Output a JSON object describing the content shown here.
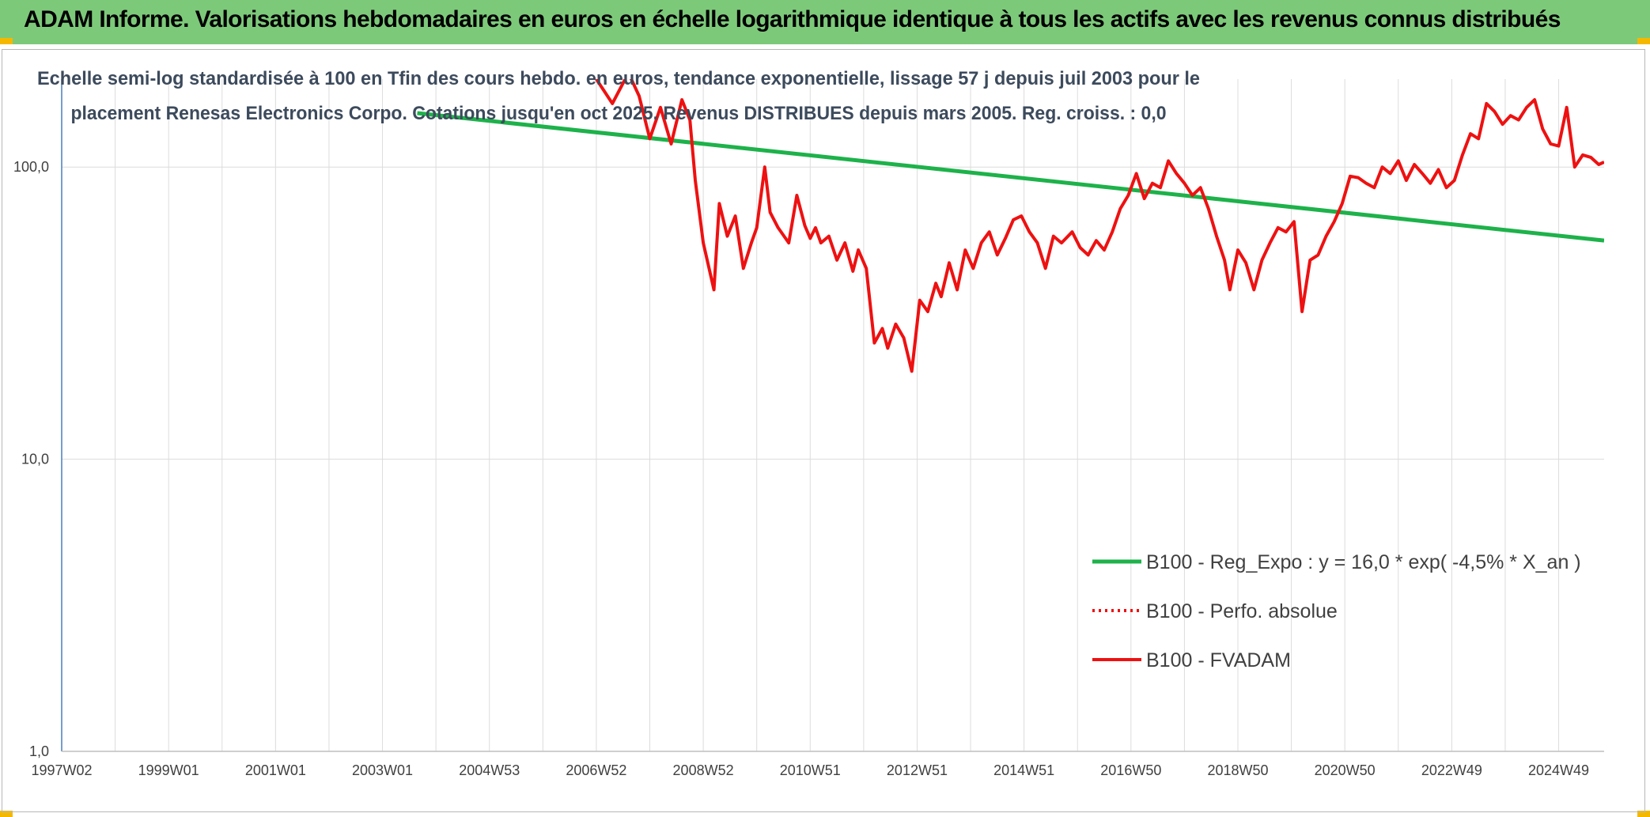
{
  "header": {
    "title": "ADAM Informe. Valorisations hebdomadaires en euros en échelle logarithmique identique à tous les actifs avec les revenus connus distribués"
  },
  "colors": {
    "header_bg": "#7dc97a",
    "trend": "#1db24a",
    "fvadam": "#ee1111",
    "perfo": "#ee1111",
    "grid": "#dcdcdc",
    "axis": "#4a7ebb"
  },
  "chart_data": {
    "type": "line",
    "subtitle_lines": [
      "Echelle semi-log standardisée à 100 en Tfin des cours hebdo. en euros, tendance exponentielle, lissage 57 j depuis juil 2003 pour le",
      "placement Renesas Electronics Corpo. Cotations jusqu'en oct 2025. Revenus DISTRIBUES depuis mars 2005. Reg. croiss. : 0,0"
    ],
    "y_scale": "log",
    "ylim": [
      1,
      200
    ],
    "y_ticks": [
      "100,0",
      "10,0",
      "1,0"
    ],
    "y_tick_values": [
      100,
      10,
      1
    ],
    "x_range": [
      1997.0,
      2025.85
    ],
    "x_ticks": [
      "1997W02",
      "1999W01",
      "2001W01",
      "2003W01",
      "2004W53",
      "2006W52",
      "2008W52",
      "2010W51",
      "2012W51",
      "2014W51",
      "2016W50",
      "2018W50",
      "2020W50",
      "2022W49",
      "2024W49"
    ],
    "x_tick_values": [
      1997.0,
      1999.0,
      2001.0,
      2003.0,
      2005.0,
      2007.0,
      2009.0,
      2011.0,
      2013.0,
      2015.0,
      2017.0,
      2019.0,
      2021.0,
      2023.0,
      2025.0
    ],
    "grid": true,
    "legend_position": "bottom-right",
    "series": [
      {
        "name": "B100 - Reg_Expo : y = 16,0 * exp( -4,5% *  X_an )",
        "style": "solid-green",
        "x": [
          2003.65,
          2025.85
        ],
        "y": [
          153,
          56
        ]
      },
      {
        "name": "B100 - Perfo. absolue",
        "style": "dotted-red",
        "x": [],
        "y": []
      },
      {
        "name": "B100 - FVADAM",
        "style": "solid-red",
        "x": [
          2007.0,
          2007.3,
          2007.6,
          2007.8,
          2008.0,
          2008.2,
          2008.4,
          2008.6,
          2008.75,
          2008.85,
          2009.0,
          2009.2,
          2009.3,
          2009.45,
          2009.6,
          2009.75,
          2009.9,
          2010.0,
          2010.15,
          2010.25,
          2010.4,
          2010.6,
          2010.75,
          2010.9,
          2011.0,
          2011.1,
          2011.2,
          2011.35,
          2011.5,
          2011.65,
          2011.8,
          2011.9,
          2012.05,
          2012.2,
          2012.35,
          2012.45,
          2012.6,
          2012.75,
          2012.9,
          2013.05,
          2013.2,
          2013.35,
          2013.45,
          2013.6,
          2013.75,
          2013.9,
          2014.05,
          2014.2,
          2014.35,
          2014.5,
          2014.65,
          2014.8,
          2014.95,
          2015.1,
          2015.25,
          2015.4,
          2015.55,
          2015.7,
          2015.9,
          2016.05,
          2016.2,
          2016.35,
          2016.5,
          2016.65,
          2016.8,
          2016.95,
          2017.1,
          2017.25,
          2017.4,
          2017.55,
          2017.7,
          2017.85,
          2018.0,
          2018.15,
          2018.3,
          2018.45,
          2018.6,
          2018.75,
          2018.85,
          2019.0,
          2019.15,
          2019.3,
          2019.45,
          2019.6,
          2019.75,
          2019.9,
          2020.05,
          2020.2,
          2020.35,
          2020.5,
          2020.65,
          2020.8,
          2020.95,
          2021.1,
          2021.25,
          2021.4,
          2021.55,
          2021.7,
          2021.85,
          2022.0,
          2022.15,
          2022.3,
          2022.45,
          2022.6,
          2022.75,
          2022.9,
          2023.05,
          2023.2,
          2023.35,
          2023.5,
          2023.65,
          2023.8,
          2023.95,
          2024.1,
          2024.25,
          2024.4,
          2024.55,
          2024.7,
          2024.85,
          2025.0,
          2025.15,
          2025.3,
          2025.45,
          2025.6,
          2025.75,
          2025.85
        ],
        "y": [
          200,
          165,
          210,
          175,
          125,
          160,
          120,
          170,
          145,
          90,
          55,
          38,
          75,
          58,
          68,
          45,
          55,
          62,
          100,
          70,
          62,
          55,
          80,
          63,
          57,
          62,
          55,
          58,
          48,
          55,
          44,
          52,
          45,
          25,
          28,
          24,
          29,
          26,
          20,
          35,
          32,
          40,
          36,
          47,
          38,
          52,
          45,
          55,
          60,
          50,
          57,
          66,
          68,
          60,
          55,
          45,
          58,
          55,
          60,
          53,
          50,
          56,
          52,
          60,
          72,
          80,
          95,
          78,
          88,
          85,
          105,
          95,
          88,
          80,
          85,
          72,
          58,
          48,
          38,
          52,
          47,
          38,
          48,
          55,
          62,
          60,
          65,
          32,
          48,
          50,
          58,
          65,
          75,
          93,
          92,
          88,
          85,
          100,
          95,
          105,
          90,
          102,
          95,
          88,
          98,
          85,
          90,
          110,
          130,
          125,
          165,
          155,
          140,
          150,
          145,
          160,
          170,
          135,
          120,
          118,
          160,
          100,
          110,
          108,
          102,
          104
        ]
      }
    ]
  }
}
